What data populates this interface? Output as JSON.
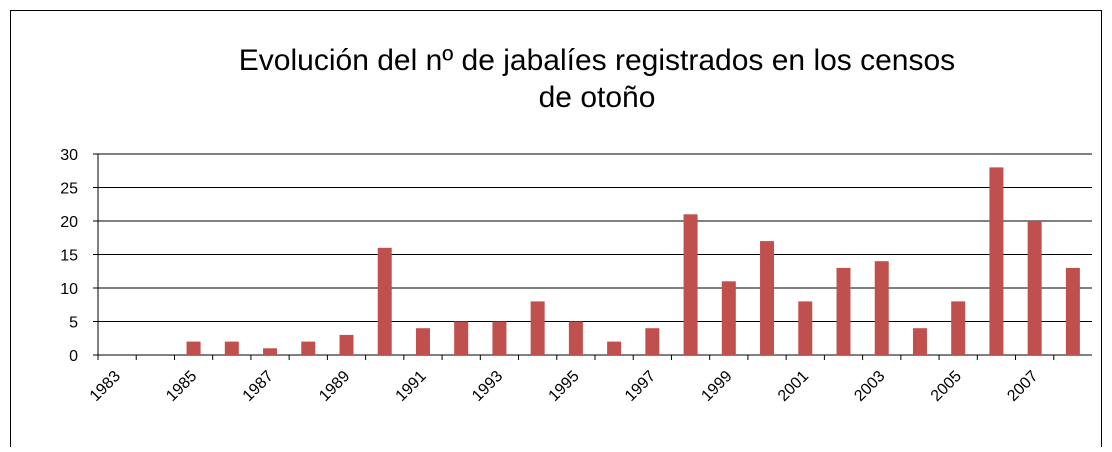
{
  "chart_data": {
    "type": "bar",
    "title": [
      "Evolución del nº de jabalíes registrados en los censos",
      "de otoño"
    ],
    "categories": [
      "1983",
      null,
      "1985",
      null,
      "1987",
      null,
      "1989",
      null,
      "1991",
      null,
      "1993",
      null,
      "1995",
      null,
      "1997",
      null,
      "1999",
      null,
      "2001",
      null,
      "2003",
      null,
      "2005",
      null,
      "2007",
      null
    ],
    "values": [
      0,
      0,
      2,
      2,
      1,
      2,
      3,
      16,
      4,
      5,
      5,
      8,
      5,
      2,
      4,
      21,
      11,
      17,
      8,
      13,
      14,
      4,
      8,
      28,
      20,
      13
    ],
    "color": "#c0504d",
    "ylim": [
      0,
      30
    ],
    "yticks": [
      0,
      5,
      10,
      15,
      20,
      25,
      30
    ],
    "grid": true
  }
}
